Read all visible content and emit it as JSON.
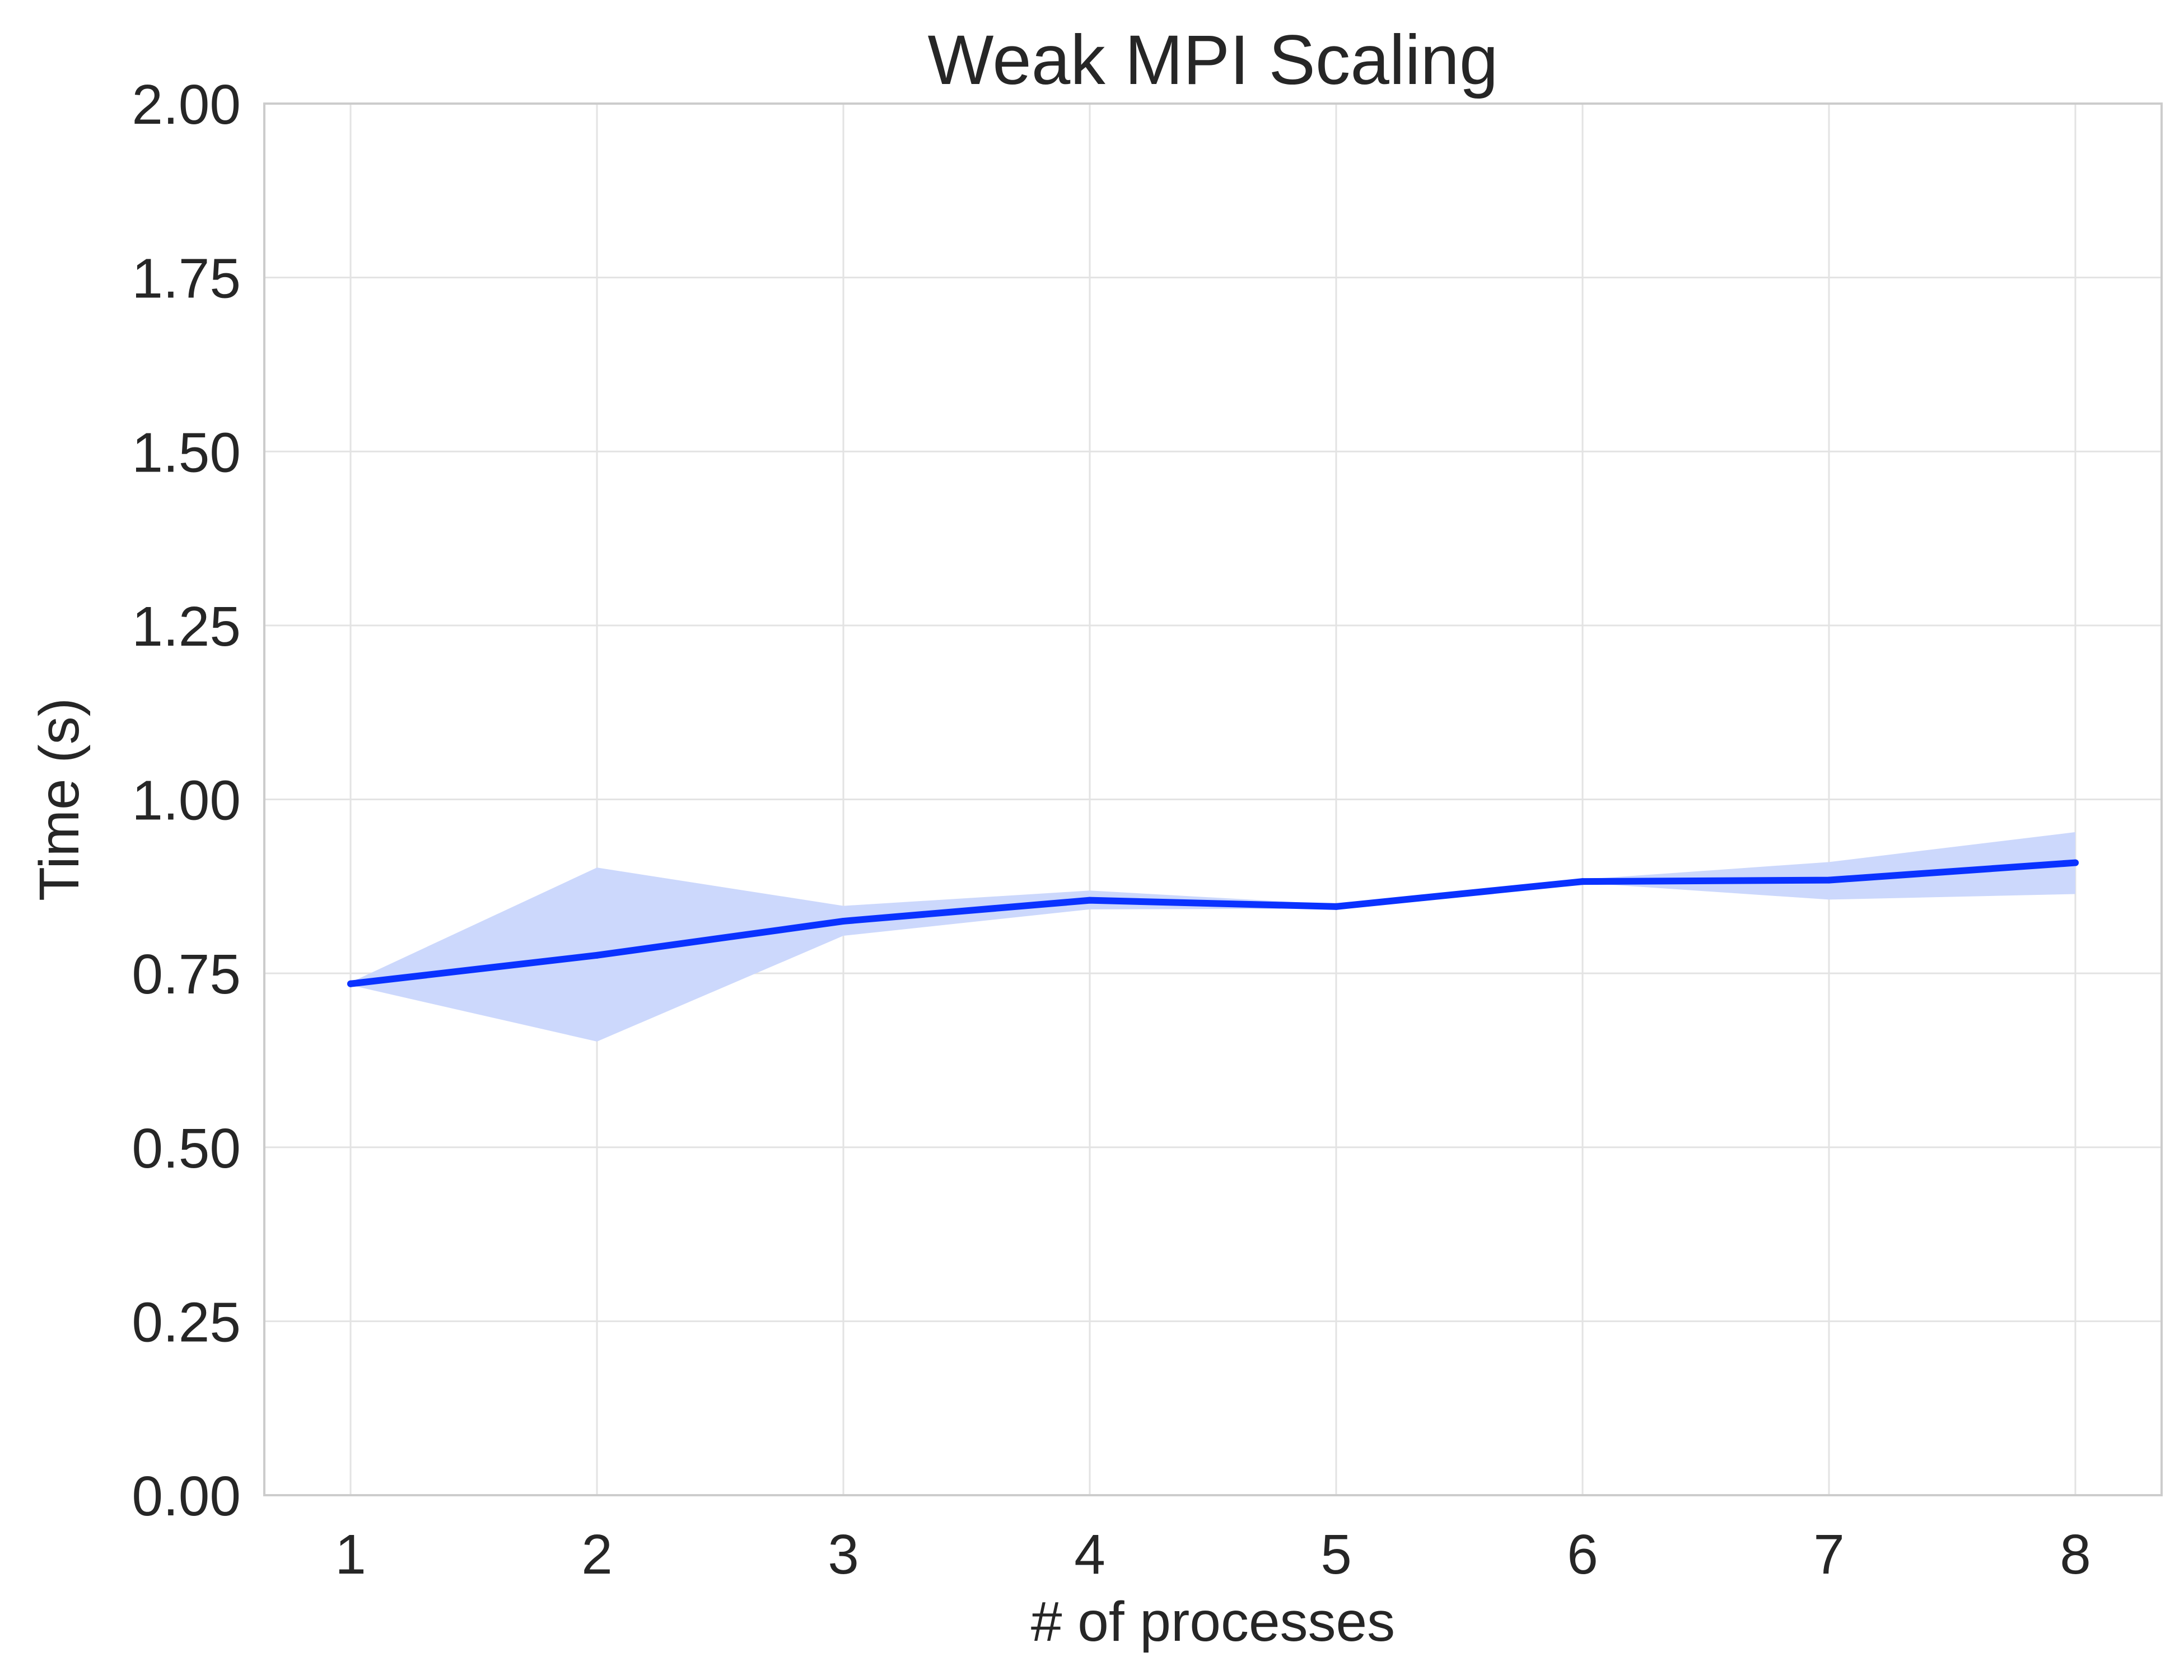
{
  "chart_data": {
    "type": "line",
    "title": "Weak MPI Scaling",
    "xlabel": "# of processes",
    "ylabel": "Time (s)",
    "x": [
      1,
      2,
      3,
      4,
      5,
      6,
      7,
      8
    ],
    "xlim": [
      0.65,
      8.35
    ],
    "ylim": [
      0,
      2.0
    ],
    "x_ticks": [
      "1",
      "2",
      "3",
      "4",
      "5",
      "6",
      "7",
      "8"
    ],
    "y_ticks": [
      "0.00",
      "0.25",
      "0.50",
      "0.75",
      "1.00",
      "1.25",
      "1.50",
      "1.75",
      "2.00"
    ],
    "grid": true,
    "series": [
      {
        "values": [
          0.735,
          0.776,
          0.825,
          0.855,
          0.846,
          0.882,
          0.884,
          0.909
        ],
        "lower": [
          0.733,
          0.652,
          0.804,
          0.842,
          0.843,
          0.88,
          0.856,
          0.864
        ],
        "upper": [
          0.737,
          0.902,
          0.847,
          0.869,
          0.849,
          0.885,
          0.91,
          0.953
        ],
        "color": "#0a32ff",
        "band_color": "#ccd8fc"
      }
    ]
  }
}
